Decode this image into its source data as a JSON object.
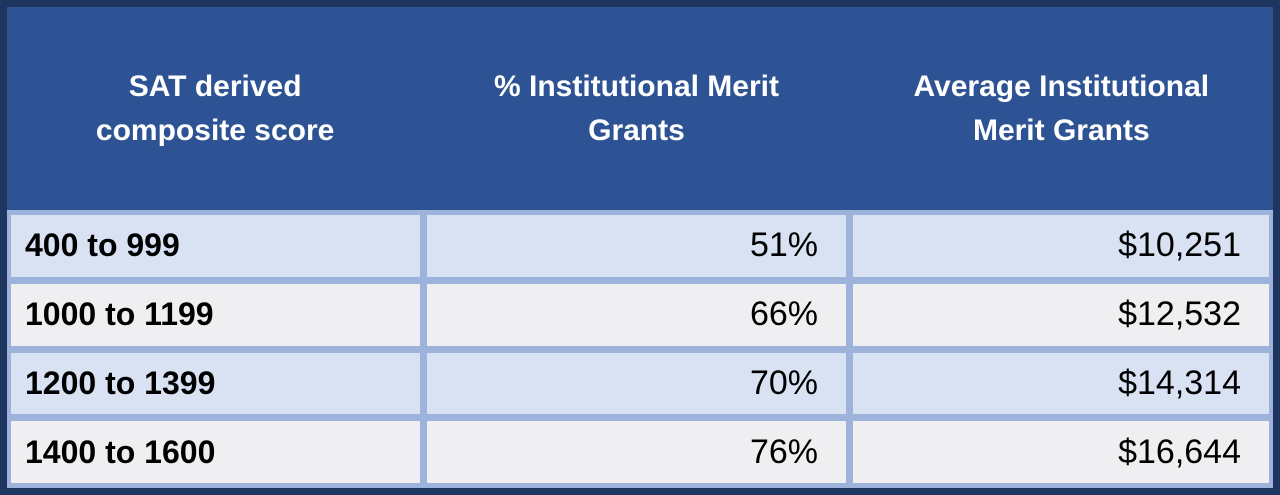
{
  "chart_data": {
    "type": "table",
    "title": "",
    "columns": [
      "SAT derived composite score",
      "% Institutional Merit Grants",
      "Average Institutional Merit Grants"
    ],
    "rows": [
      [
        "400 to 999",
        "51%",
        "$10,251"
      ],
      [
        "1000 to 1199",
        "66%",
        "$12,532"
      ],
      [
        "1200 to 1399",
        "70%",
        "$14,314"
      ],
      [
        "1400 to 1600",
        "76%",
        "$16,644"
      ]
    ]
  },
  "colors": {
    "outer_border": "#1e3560",
    "header_bg": "#2e5395",
    "header_text": "#ffffff",
    "divider": "#9db3dc",
    "row_odd_bg": "#d9e2f3",
    "row_even_bg": "#efeff1",
    "data_text": "#000000"
  }
}
